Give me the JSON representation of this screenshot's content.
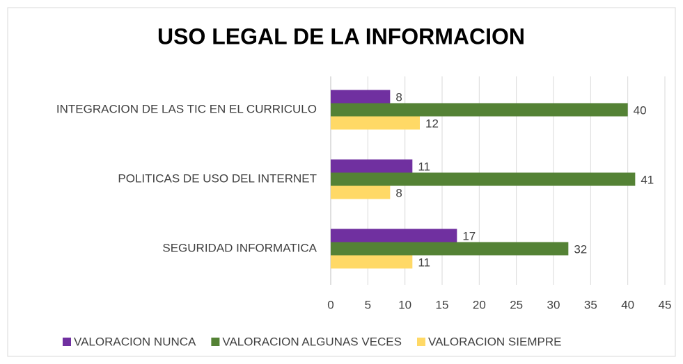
{
  "chart_data": {
    "type": "bar",
    "orientation": "horizontal",
    "title": "USO LEGAL DE LA INFORMACION",
    "categories": [
      "INTEGRACION DE LAS TIC EN EL CURRICULO",
      "POLITICAS DE USO DEL INTERNET",
      "SEGURIDAD INFORMATICA"
    ],
    "series": [
      {
        "name": "VALORACION NUNCA",
        "color": "#7030a0",
        "values": [
          8,
          11,
          17
        ]
      },
      {
        "name": "VALORACION ALGUNAS VECES",
        "color": "#548235",
        "values": [
          40,
          41,
          32
        ]
      },
      {
        "name": "VALORACION SIEMPRE",
        "color": "#ffd966",
        "values": [
          12,
          8,
          11
        ]
      }
    ],
    "xlim": [
      0,
      45
    ],
    "xticks": [
      0,
      5,
      10,
      15,
      20,
      25,
      30,
      35,
      40,
      45
    ],
    "grid": true,
    "legend": "bottom"
  }
}
